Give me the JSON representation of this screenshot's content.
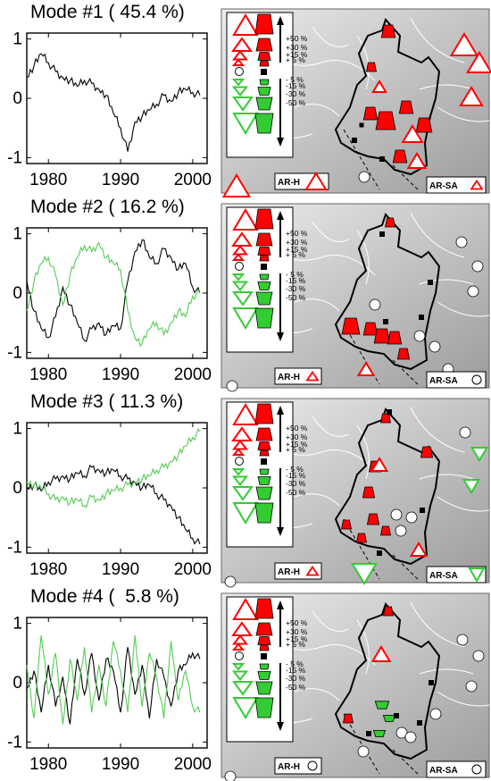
{
  "chart_data": [
    {
      "type": "line",
      "title": "Mode #1 ( 45.4 %)",
      "xticks": [
        "1980",
        "1990",
        "2000"
      ],
      "yticks": [
        "1",
        "0",
        "-1"
      ],
      "xlim": [
        1977,
        2002
      ],
      "ylim": [
        -1.1,
        1.1
      ],
      "series": [
        {
          "color": "#000000",
          "x": [
            1977,
            1978,
            1979,
            1980,
            1981,
            1982,
            1983,
            1984,
            1985,
            1986,
            1987,
            1988,
            1989,
            1990,
            1991,
            1992,
            1993,
            1994,
            1995,
            1996,
            1997,
            1998,
            1999,
            2000,
            2001
          ],
          "values": [
            0.35,
            0.55,
            0.75,
            0.6,
            0.45,
            0.35,
            0.3,
            0.2,
            0.3,
            0.25,
            0.15,
            0.05,
            -0.25,
            -0.5,
            -0.9,
            -0.4,
            -0.3,
            -0.2,
            -0.1,
            0.05,
            -0.05,
            0.1,
            0.15,
            0.1,
            0.05
          ]
        }
      ]
    },
    {
      "type": "line",
      "title": "Mode #2 ( 16.2 %)",
      "xticks": [
        "1980",
        "1990",
        "2000"
      ],
      "yticks": [
        "1",
        "0",
        "-1"
      ],
      "xlim": [
        1977,
        2002
      ],
      "ylim": [
        -1.1,
        1.1
      ],
      "series": [
        {
          "color": "#000000",
          "x": [
            1977,
            1978,
            1979,
            1980,
            1981,
            1982,
            1983,
            1984,
            1985,
            1986,
            1987,
            1988,
            1989,
            1990,
            1991,
            1992,
            1993,
            1994,
            1995,
            1996,
            1997,
            1998,
            1999,
            2000,
            2001
          ],
          "values": [
            0.2,
            -0.3,
            -0.6,
            -0.75,
            -0.4,
            0.1,
            -0.2,
            -0.5,
            -0.8,
            -0.6,
            -0.5,
            -0.7,
            -0.55,
            -0.6,
            0.2,
            0.7,
            0.9,
            0.6,
            0.5,
            0.75,
            0.6,
            0.4,
            0.5,
            0.1,
            0.0
          ]
        },
        {
          "color": "#55cc55",
          "x": [
            1977,
            1978,
            1979,
            1980,
            1981,
            1982,
            1983,
            1984,
            1985,
            1986,
            1987,
            1988,
            1989,
            1990,
            1991,
            1992,
            1993,
            1994,
            1995,
            1996,
            1997,
            1998,
            1999,
            2000,
            2001
          ],
          "values": [
            -0.3,
            0.2,
            0.5,
            0.6,
            0.3,
            -0.2,
            0.3,
            0.6,
            0.8,
            0.7,
            0.85,
            0.6,
            0.5,
            0.4,
            -0.3,
            -0.75,
            -0.85,
            -0.6,
            -0.5,
            -0.7,
            -0.5,
            -0.3,
            -0.4,
            -0.05,
            0.0
          ]
        }
      ]
    },
    {
      "type": "line",
      "title": "Mode #3 ( 11.3 %)",
      "xticks": [
        "1980",
        "1990",
        "2000"
      ],
      "yticks": [
        "1",
        "0",
        "-1"
      ],
      "xlim": [
        1977,
        2002
      ],
      "ylim": [
        -1.1,
        1.1
      ],
      "series": [
        {
          "color": "#000000",
          "x": [
            1977,
            1978,
            1979,
            1980,
            1981,
            1982,
            1983,
            1984,
            1985,
            1986,
            1987,
            1988,
            1989,
            1990,
            1991,
            1992,
            1993,
            1994,
            1995,
            1996,
            1997,
            1998,
            1999,
            2000,
            2001
          ],
          "values": [
            0.0,
            0.05,
            -0.05,
            0.1,
            0.15,
            0.2,
            0.15,
            0.25,
            0.2,
            0.35,
            0.3,
            0.25,
            0.3,
            0.2,
            0.15,
            0.1,
            0.0,
            0.05,
            -0.1,
            -0.2,
            -0.3,
            -0.5,
            -0.7,
            -0.85,
            -0.95
          ]
        },
        {
          "color": "#55cc55",
          "x": [
            1977,
            1978,
            1979,
            1980,
            1981,
            1982,
            1983,
            1984,
            1985,
            1986,
            1987,
            1988,
            1989,
            1990,
            1991,
            1992,
            1993,
            1994,
            1995,
            1996,
            1997,
            1998,
            1999,
            2000,
            2001
          ],
          "values": [
            0.1,
            0.05,
            0.0,
            -0.1,
            -0.2,
            -0.15,
            -0.25,
            -0.2,
            -0.3,
            -0.15,
            -0.2,
            -0.1,
            -0.05,
            0.0,
            0.05,
            0.1,
            0.15,
            0.2,
            0.3,
            0.35,
            0.45,
            0.55,
            0.7,
            0.85,
            0.95
          ]
        }
      ]
    },
    {
      "type": "line",
      "title": "Mode #4 (  5.8 %)",
      "xticks": [
        "1980",
        "1990",
        "2000"
      ],
      "yticks": [
        "1",
        "0",
        "-1"
      ],
      "xlim": [
        1977,
        2002
      ],
      "ylim": [
        -1.1,
        1.1
      ],
      "series": [
        {
          "color": "#000000",
          "x": [
            1977,
            1978,
            1979,
            1980,
            1981,
            1982,
            1983,
            1984,
            1985,
            1986,
            1987,
            1988,
            1989,
            1990,
            1991,
            1992,
            1993,
            1994,
            1995,
            1996,
            1997,
            1998,
            1999,
            2000,
            2001
          ],
          "values": [
            -0.1,
            0.2,
            -0.5,
            0.3,
            -0.4,
            0.1,
            -0.7,
            0.4,
            -0.2,
            0.5,
            -0.3,
            0.4,
            0.2,
            -0.5,
            0.6,
            -0.2,
            0.3,
            -0.6,
            0.4,
            0.1,
            -0.4,
            0.2,
            0.3,
            0.5,
            0.4
          ]
        },
        {
          "color": "#55cc55",
          "x": [
            1977,
            1978,
            1979,
            1980,
            1981,
            1982,
            1983,
            1984,
            1985,
            1986,
            1987,
            1988,
            1989,
            1990,
            1991,
            1992,
            1993,
            1994,
            1995,
            1996,
            1997,
            1998,
            1999,
            2000,
            2001
          ],
          "values": [
            0.3,
            -0.6,
            0.8,
            -0.2,
            0.5,
            -0.7,
            0.4,
            -0.3,
            0.6,
            -0.5,
            0.3,
            -0.4,
            0.7,
            0.2,
            -0.5,
            0.8,
            -0.4,
            0.5,
            0.1,
            -0.6,
            0.7,
            -0.3,
            0.2,
            -0.4,
            -0.5
          ]
        }
      ]
    }
  ],
  "legend": {
    "labels": [
      "+50 %",
      "+30 %",
      "+15 %",
      "+ 5 %",
      "- 5 %",
      "-15 %",
      "-30 %",
      "-50 %"
    ]
  },
  "maps": [
    {
      "labels": [
        "AR-H",
        "AR-SA"
      ],
      "label_symbols": [
        "triangle-up-large",
        "triangle-up-small"
      ],
      "colors": {
        "increase": "#ff0000",
        "decrease": "#33cc33",
        "outline_up": "#ff0000"
      }
    },
    {
      "labels": [
        "AR-H",
        "AR-SA"
      ],
      "label_symbols": [
        "triangle-up-small",
        "circle"
      ]
    },
    {
      "labels": [
        "AR-H",
        "AR-SA"
      ],
      "label_symbols": [
        "triangle-up-small",
        "triangle-down"
      ]
    },
    {
      "labels": [
        "AR-H",
        "AR-SA"
      ],
      "label_symbols": [
        "circle",
        "circle"
      ]
    }
  ]
}
